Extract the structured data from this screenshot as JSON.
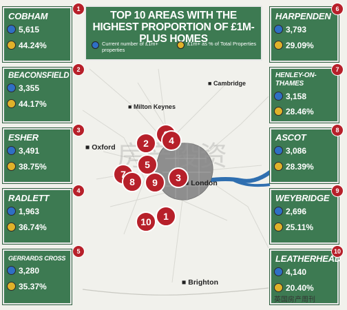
{
  "title": "TOP 10 AREAS WITH THE HIGHEST PROPORTION OF £1M-PLUS HOMES",
  "legend": {
    "count_label": "Current number of £1m+ properties",
    "share_label": "£1m+ as % of Total Properties",
    "count_color": "#2f6fc4",
    "share_color": "#e0b22a"
  },
  "areas": [
    {
      "rank": "1",
      "name": "COBHAM",
      "count": "5,615",
      "share": "44.24%"
    },
    {
      "rank": "2",
      "name": "BEACONSFIELD",
      "count": "3,355",
      "share": "44.17%"
    },
    {
      "rank": "3",
      "name": "ESHER",
      "count": "3,491",
      "share": "38.75%"
    },
    {
      "rank": "4",
      "name": "RADLETT",
      "count": "1,963",
      "share": "36.74%"
    },
    {
      "rank": "5",
      "name": "GERRARDS CROSS",
      "count": "3,280",
      "share": "35.37%"
    },
    {
      "rank": "6",
      "name": "HARPENDEN",
      "count": "3,793",
      "share": "29.09%"
    },
    {
      "rank": "7",
      "name": "HENLEY-ON-THAMES",
      "count": "3,158",
      "share": "28.46%"
    },
    {
      "rank": "8",
      "name": "ASCOT",
      "count": "3,086",
      "share": "28.39%"
    },
    {
      "rank": "9",
      "name": "WEYBRIDGE",
      "count": "2,696",
      "share": "25.11%"
    },
    {
      "rank": "10",
      "name": "LEATHERHEAD",
      "count": "4,140",
      "share": "20.40%"
    }
  ],
  "cities": {
    "cambridge": "Cambridge",
    "milton_keynes": "Milton Keynes",
    "oxford": "Oxford",
    "london": "London",
    "brighton": "Brighton"
  },
  "map_pins": [
    "6",
    "2",
    "4",
    "7",
    "5",
    "3",
    "8",
    "9",
    "10",
    "1"
  ],
  "watermark": "房产投资",
  "credit": "英国房产周刊",
  "colors": {
    "card": "#3d7a52",
    "pin": "#b7202a",
    "river": "#2f6fb0"
  }
}
